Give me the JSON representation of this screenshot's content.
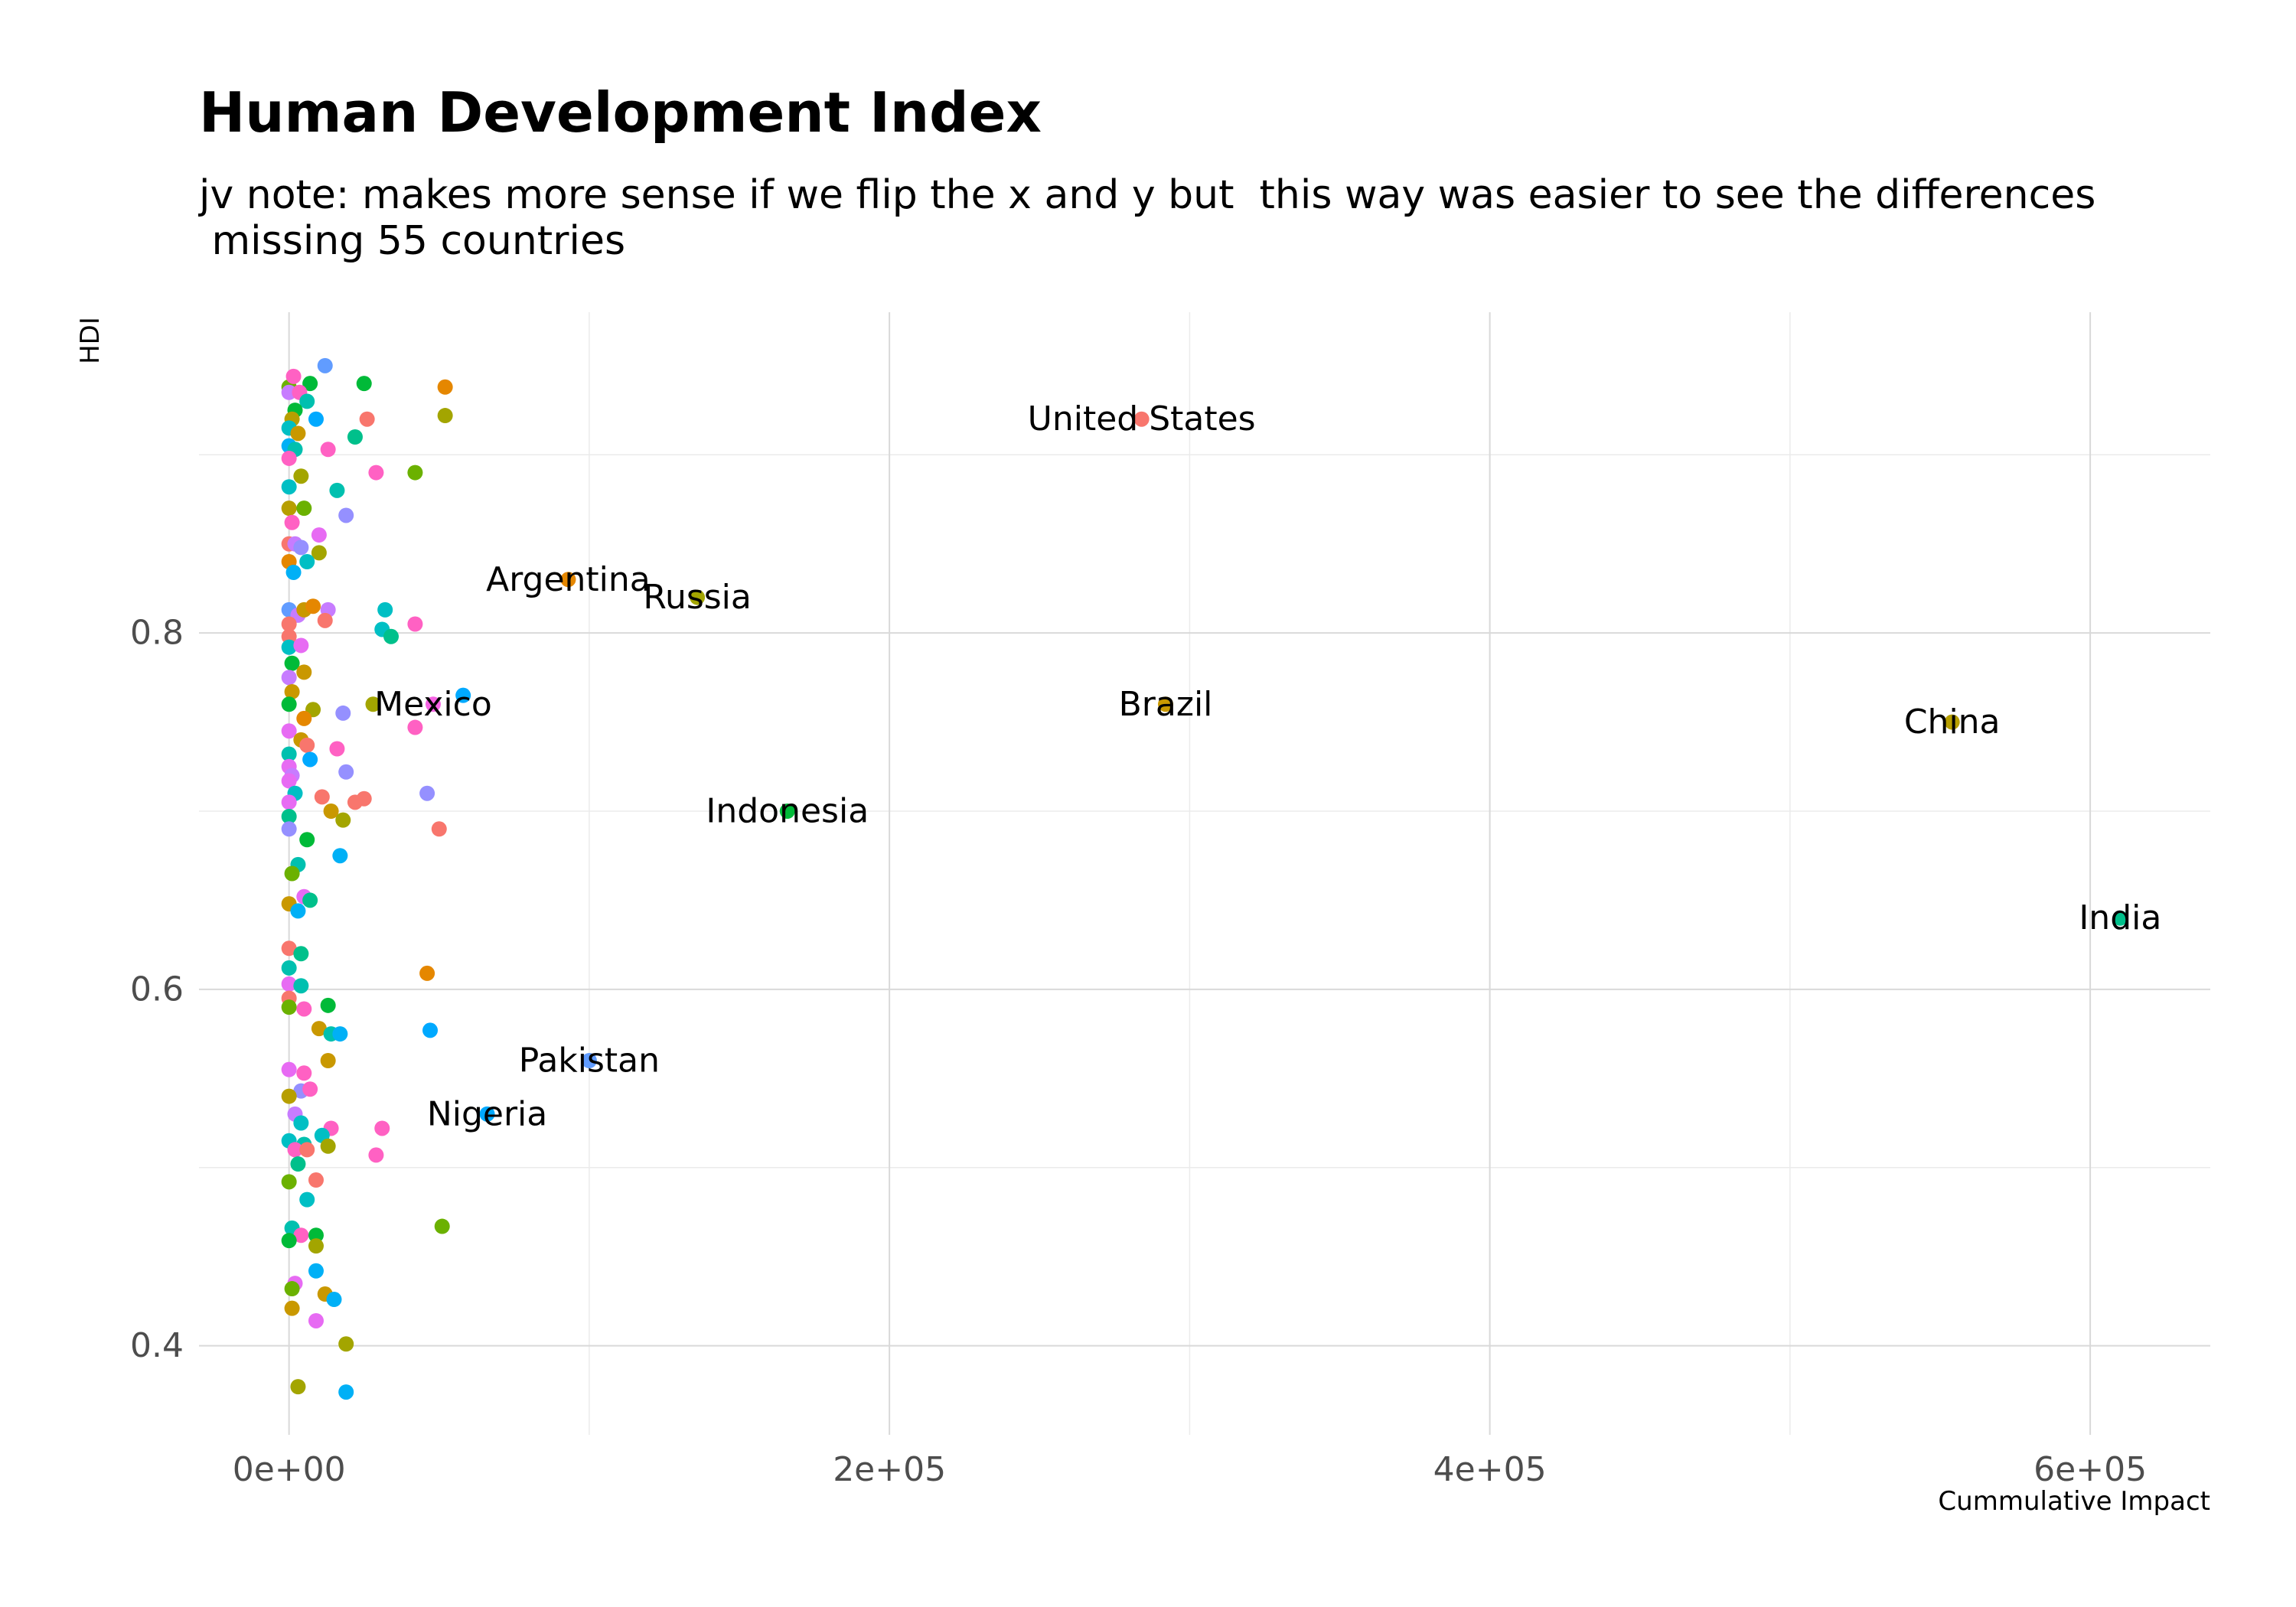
{
  "chart_data": {
    "type": "scatter",
    "title": "Human Development Index",
    "subtitle": "jv note: makes more sense if we flip the x and y but  this way was easier to see the differences\n missing 55 countries",
    "xlabel": "Cummulative Impact",
    "ylabel": "HDI",
    "xlim": [
      -30000,
      640000
    ],
    "ylim": [
      0.35,
      0.98
    ],
    "x_ticks": [
      0,
      200000,
      400000,
      600000
    ],
    "x_tick_labels": [
      "0e+00",
      "2e+05",
      "4e+05",
      "6e+05"
    ],
    "y_ticks": [
      0.4,
      0.6,
      0.8
    ],
    "y_tick_labels": [
      "0.4",
      "0.6",
      "0.8"
    ],
    "grid": true,
    "legend": "none",
    "labeled_points": [
      {
        "label": "United States",
        "x": 284000,
        "y": 0.92,
        "color": "#F8766D"
      },
      {
        "label": "Argentina",
        "x": 93000,
        "y": 0.83,
        "color": "#E58700"
      },
      {
        "label": "Russia",
        "x": 136000,
        "y": 0.82,
        "color": "#A3A500"
      },
      {
        "label": "Mexico",
        "x": 48000,
        "y": 0.76,
        "color": "#F564E3"
      },
      {
        "label": "Brazil",
        "x": 292000,
        "y": 0.76,
        "color": "#C99800"
      },
      {
        "label": "China",
        "x": 554000,
        "y": 0.75,
        "color": "#B79F00"
      },
      {
        "label": "Indonesia",
        "x": 166000,
        "y": 0.7,
        "color": "#00BA38"
      },
      {
        "label": "India",
        "x": 610000,
        "y": 0.64,
        "color": "#00C08B"
      },
      {
        "label": "Pakistan",
        "x": 100000,
        "y": 0.56,
        "color": "#619CFF"
      },
      {
        "label": "Nigeria",
        "x": 66000,
        "y": 0.53,
        "color": "#00A9FF"
      }
    ],
    "points": [
      {
        "x": 12000,
        "y": 0.95,
        "color": "#619CFF"
      },
      {
        "x": 0,
        "y": 0.938,
        "color": "#6BB100"
      },
      {
        "x": 1500,
        "y": 0.944,
        "color": "#FF61C3"
      },
      {
        "x": 7000,
        "y": 0.94,
        "color": "#00BA38"
      },
      {
        "x": 25000,
        "y": 0.94,
        "color": "#00BA38"
      },
      {
        "x": 52000,
        "y": 0.938,
        "color": "#E58700"
      },
      {
        "x": 0,
        "y": 0.935,
        "color": "#C77CFF"
      },
      {
        "x": 3500,
        "y": 0.935,
        "color": "#FF61C3"
      },
      {
        "x": 6000,
        "y": 0.93,
        "color": "#00C0AF"
      },
      {
        "x": 2000,
        "y": 0.925,
        "color": "#00BA38"
      },
      {
        "x": 1000,
        "y": 0.92,
        "color": "#B79F00"
      },
      {
        "x": 9000,
        "y": 0.92,
        "color": "#00A9FF"
      },
      {
        "x": 26000,
        "y": 0.92,
        "color": "#F8766D"
      },
      {
        "x": 52000,
        "y": 0.922,
        "color": "#A3A500"
      },
      {
        "x": 0,
        "y": 0.915,
        "color": "#00BFC4"
      },
      {
        "x": 3000,
        "y": 0.912,
        "color": "#C99800"
      },
      {
        "x": 22000,
        "y": 0.91,
        "color": "#00C08B"
      },
      {
        "x": 0,
        "y": 0.905,
        "color": "#00B0F6"
      },
      {
        "x": 2000,
        "y": 0.903,
        "color": "#00C0AF"
      },
      {
        "x": 13000,
        "y": 0.903,
        "color": "#FF61C3"
      },
      {
        "x": 0,
        "y": 0.898,
        "color": "#FF61C3"
      },
      {
        "x": 4000,
        "y": 0.888,
        "color": "#A3A500"
      },
      {
        "x": 29000,
        "y": 0.89,
        "color": "#FF61C3"
      },
      {
        "x": 42000,
        "y": 0.89,
        "color": "#6BB100"
      },
      {
        "x": 0,
        "y": 0.882,
        "color": "#00BFC4"
      },
      {
        "x": 16000,
        "y": 0.88,
        "color": "#00C0AF"
      },
      {
        "x": 0,
        "y": 0.87,
        "color": "#B79F00"
      },
      {
        "x": 5000,
        "y": 0.87,
        "color": "#6BB100"
      },
      {
        "x": 19000,
        "y": 0.866,
        "color": "#9590FF"
      },
      {
        "x": 1000,
        "y": 0.862,
        "color": "#FF61C3"
      },
      {
        "x": 10000,
        "y": 0.855,
        "color": "#E76BF3"
      },
      {
        "x": 0,
        "y": 0.85,
        "color": "#F8766D"
      },
      {
        "x": 2000,
        "y": 0.85,
        "color": "#C77CFF"
      },
      {
        "x": 4000,
        "y": 0.848,
        "color": "#9590FF"
      },
      {
        "x": 10000,
        "y": 0.845,
        "color": "#A3A500"
      },
      {
        "x": 0,
        "y": 0.84,
        "color": "#E58700"
      },
      {
        "x": 6000,
        "y": 0.84,
        "color": "#00BFC4"
      },
      {
        "x": 1500,
        "y": 0.834,
        "color": "#00B0F6"
      },
      {
        "x": 0,
        "y": 0.813,
        "color": "#619CFF"
      },
      {
        "x": 3000,
        "y": 0.81,
        "color": "#C77CFF"
      },
      {
        "x": 5000,
        "y": 0.813,
        "color": "#C99800"
      },
      {
        "x": 8000,
        "y": 0.815,
        "color": "#E58700"
      },
      {
        "x": 13000,
        "y": 0.813,
        "color": "#C77CFF"
      },
      {
        "x": 32000,
        "y": 0.813,
        "color": "#00BFC4"
      },
      {
        "x": 0,
        "y": 0.805,
        "color": "#F8766D"
      },
      {
        "x": 12000,
        "y": 0.807,
        "color": "#F8766D"
      },
      {
        "x": 42000,
        "y": 0.805,
        "color": "#FF61C3"
      },
      {
        "x": 31000,
        "y": 0.802,
        "color": "#00BFC4"
      },
      {
        "x": 34000,
        "y": 0.798,
        "color": "#00C08B"
      },
      {
        "x": 0,
        "y": 0.798,
        "color": "#F8766D"
      },
      {
        "x": 0,
        "y": 0.792,
        "color": "#00BFC4"
      },
      {
        "x": 4000,
        "y": 0.793,
        "color": "#E76BF3"
      },
      {
        "x": 1000,
        "y": 0.783,
        "color": "#00BA38"
      },
      {
        "x": 5000,
        "y": 0.778,
        "color": "#C99800"
      },
      {
        "x": 0,
        "y": 0.775,
        "color": "#C77CFF"
      },
      {
        "x": 1000,
        "y": 0.767,
        "color": "#C99800"
      },
      {
        "x": 0,
        "y": 0.76,
        "color": "#00BA38"
      },
      {
        "x": 8000,
        "y": 0.757,
        "color": "#A3A500"
      },
      {
        "x": 18000,
        "y": 0.755,
        "color": "#9590FF"
      },
      {
        "x": 28000,
        "y": 0.76,
        "color": "#A3A500"
      },
      {
        "x": 58000,
        "y": 0.765,
        "color": "#00A9FF"
      },
      {
        "x": 5000,
        "y": 0.752,
        "color": "#E58700"
      },
      {
        "x": 42000,
        "y": 0.747,
        "color": "#FF61C3"
      },
      {
        "x": 0,
        "y": 0.745,
        "color": "#E76BF3"
      },
      {
        "x": 4000,
        "y": 0.74,
        "color": "#C99800"
      },
      {
        "x": 6000,
        "y": 0.737,
        "color": "#F8766D"
      },
      {
        "x": 16000,
        "y": 0.735,
        "color": "#FF61C3"
      },
      {
        "x": 0,
        "y": 0.732,
        "color": "#00C0AF"
      },
      {
        "x": 7000,
        "y": 0.729,
        "color": "#00A9FF"
      },
      {
        "x": 0,
        "y": 0.725,
        "color": "#E76BF3"
      },
      {
        "x": 1000,
        "y": 0.72,
        "color": "#C77CFF"
      },
      {
        "x": 0,
        "y": 0.717,
        "color": "#E76BF3"
      },
      {
        "x": 19000,
        "y": 0.722,
        "color": "#9590FF"
      },
      {
        "x": 2000,
        "y": 0.71,
        "color": "#00BFC4"
      },
      {
        "x": 11000,
        "y": 0.708,
        "color": "#F8766D"
      },
      {
        "x": 25000,
        "y": 0.707,
        "color": "#F8766D"
      },
      {
        "x": 46000,
        "y": 0.71,
        "color": "#9590FF"
      },
      {
        "x": 0,
        "y": 0.705,
        "color": "#E76BF3"
      },
      {
        "x": 14000,
        "y": 0.7,
        "color": "#C99800"
      },
      {
        "x": 22000,
        "y": 0.705,
        "color": "#F8766D"
      },
      {
        "x": 0,
        "y": 0.697,
        "color": "#00C08B"
      },
      {
        "x": 18000,
        "y": 0.695,
        "color": "#A3A500"
      },
      {
        "x": 0,
        "y": 0.69,
        "color": "#9590FF"
      },
      {
        "x": 50000,
        "y": 0.69,
        "color": "#F8766D"
      },
      {
        "x": 6000,
        "y": 0.684,
        "color": "#00BA38"
      },
      {
        "x": 17000,
        "y": 0.675,
        "color": "#00B0F6"
      },
      {
        "x": 3000,
        "y": 0.67,
        "color": "#00C0AF"
      },
      {
        "x": 1000,
        "y": 0.665,
        "color": "#6BB100"
      },
      {
        "x": 5000,
        "y": 0.652,
        "color": "#E76BF3"
      },
      {
        "x": 7000,
        "y": 0.65,
        "color": "#00C08B"
      },
      {
        "x": 0,
        "y": 0.648,
        "color": "#C99800"
      },
      {
        "x": 3000,
        "y": 0.644,
        "color": "#00B0F6"
      },
      {
        "x": 0,
        "y": 0.623,
        "color": "#F8766D"
      },
      {
        "x": 4000,
        "y": 0.62,
        "color": "#00C08B"
      },
      {
        "x": 0,
        "y": 0.612,
        "color": "#00C0AF"
      },
      {
        "x": 46000,
        "y": 0.609,
        "color": "#E58700"
      },
      {
        "x": 0,
        "y": 0.603,
        "color": "#E76BF3"
      },
      {
        "x": 4000,
        "y": 0.602,
        "color": "#00C0AF"
      },
      {
        "x": 0,
        "y": 0.595,
        "color": "#F8766D"
      },
      {
        "x": 0,
        "y": 0.59,
        "color": "#6BB100"
      },
      {
        "x": 5000,
        "y": 0.589,
        "color": "#FF61C3"
      },
      {
        "x": 13000,
        "y": 0.591,
        "color": "#00BA38"
      },
      {
        "x": 10000,
        "y": 0.578,
        "color": "#C99800"
      },
      {
        "x": 14000,
        "y": 0.575,
        "color": "#00C0AF"
      },
      {
        "x": 17000,
        "y": 0.575,
        "color": "#00B0F6"
      },
      {
        "x": 47000,
        "y": 0.577,
        "color": "#00A9FF"
      },
      {
        "x": 13000,
        "y": 0.56,
        "color": "#C99800"
      },
      {
        "x": 0,
        "y": 0.555,
        "color": "#E76BF3"
      },
      {
        "x": 5000,
        "y": 0.553,
        "color": "#FF61C3"
      },
      {
        "x": 4000,
        "y": 0.543,
        "color": "#9590FF"
      },
      {
        "x": 7000,
        "y": 0.544,
        "color": "#FF61C3"
      },
      {
        "x": 0,
        "y": 0.54,
        "color": "#B79F00"
      },
      {
        "x": 2000,
        "y": 0.53,
        "color": "#C77CFF"
      },
      {
        "x": 4000,
        "y": 0.525,
        "color": "#00BFC4"
      },
      {
        "x": 14000,
        "y": 0.522,
        "color": "#FF61C3"
      },
      {
        "x": 31000,
        "y": 0.522,
        "color": "#FF61C3"
      },
      {
        "x": 11000,
        "y": 0.518,
        "color": "#00BFC4"
      },
      {
        "x": 0,
        "y": 0.515,
        "color": "#00BFC4"
      },
      {
        "x": 5000,
        "y": 0.513,
        "color": "#00C0AF"
      },
      {
        "x": 13000,
        "y": 0.512,
        "color": "#A3A500"
      },
      {
        "x": 2000,
        "y": 0.51,
        "color": "#FF61C3"
      },
      {
        "x": 6000,
        "y": 0.51,
        "color": "#F8766D"
      },
      {
        "x": 29000,
        "y": 0.507,
        "color": "#FF61C3"
      },
      {
        "x": 3000,
        "y": 0.502,
        "color": "#00C08B"
      },
      {
        "x": 9000,
        "y": 0.493,
        "color": "#F8766D"
      },
      {
        "x": 0,
        "y": 0.492,
        "color": "#6BB100"
      },
      {
        "x": 6000,
        "y": 0.482,
        "color": "#00BFC4"
      },
      {
        "x": 51000,
        "y": 0.467,
        "color": "#6BB100"
      },
      {
        "x": 1000,
        "y": 0.466,
        "color": "#00C0AF"
      },
      {
        "x": 4000,
        "y": 0.462,
        "color": "#FF61C3"
      },
      {
        "x": 9000,
        "y": 0.462,
        "color": "#00BA38"
      },
      {
        "x": 0,
        "y": 0.459,
        "color": "#00BA38"
      },
      {
        "x": 9000,
        "y": 0.456,
        "color": "#A3A500"
      },
      {
        "x": 9000,
        "y": 0.442,
        "color": "#00B0F6"
      },
      {
        "x": 2000,
        "y": 0.435,
        "color": "#E76BF3"
      },
      {
        "x": 1000,
        "y": 0.432,
        "color": "#6BB100"
      },
      {
        "x": 12000,
        "y": 0.429,
        "color": "#C99800"
      },
      {
        "x": 15000,
        "y": 0.426,
        "color": "#00B0F6"
      },
      {
        "x": 1000,
        "y": 0.421,
        "color": "#C99800"
      },
      {
        "x": 9000,
        "y": 0.414,
        "color": "#E76BF3"
      },
      {
        "x": 19000,
        "y": 0.401,
        "color": "#A3A500"
      },
      {
        "x": 3000,
        "y": 0.377,
        "color": "#A3A500"
      },
      {
        "x": 19000,
        "y": 0.374,
        "color": "#00B0F6"
      }
    ]
  }
}
